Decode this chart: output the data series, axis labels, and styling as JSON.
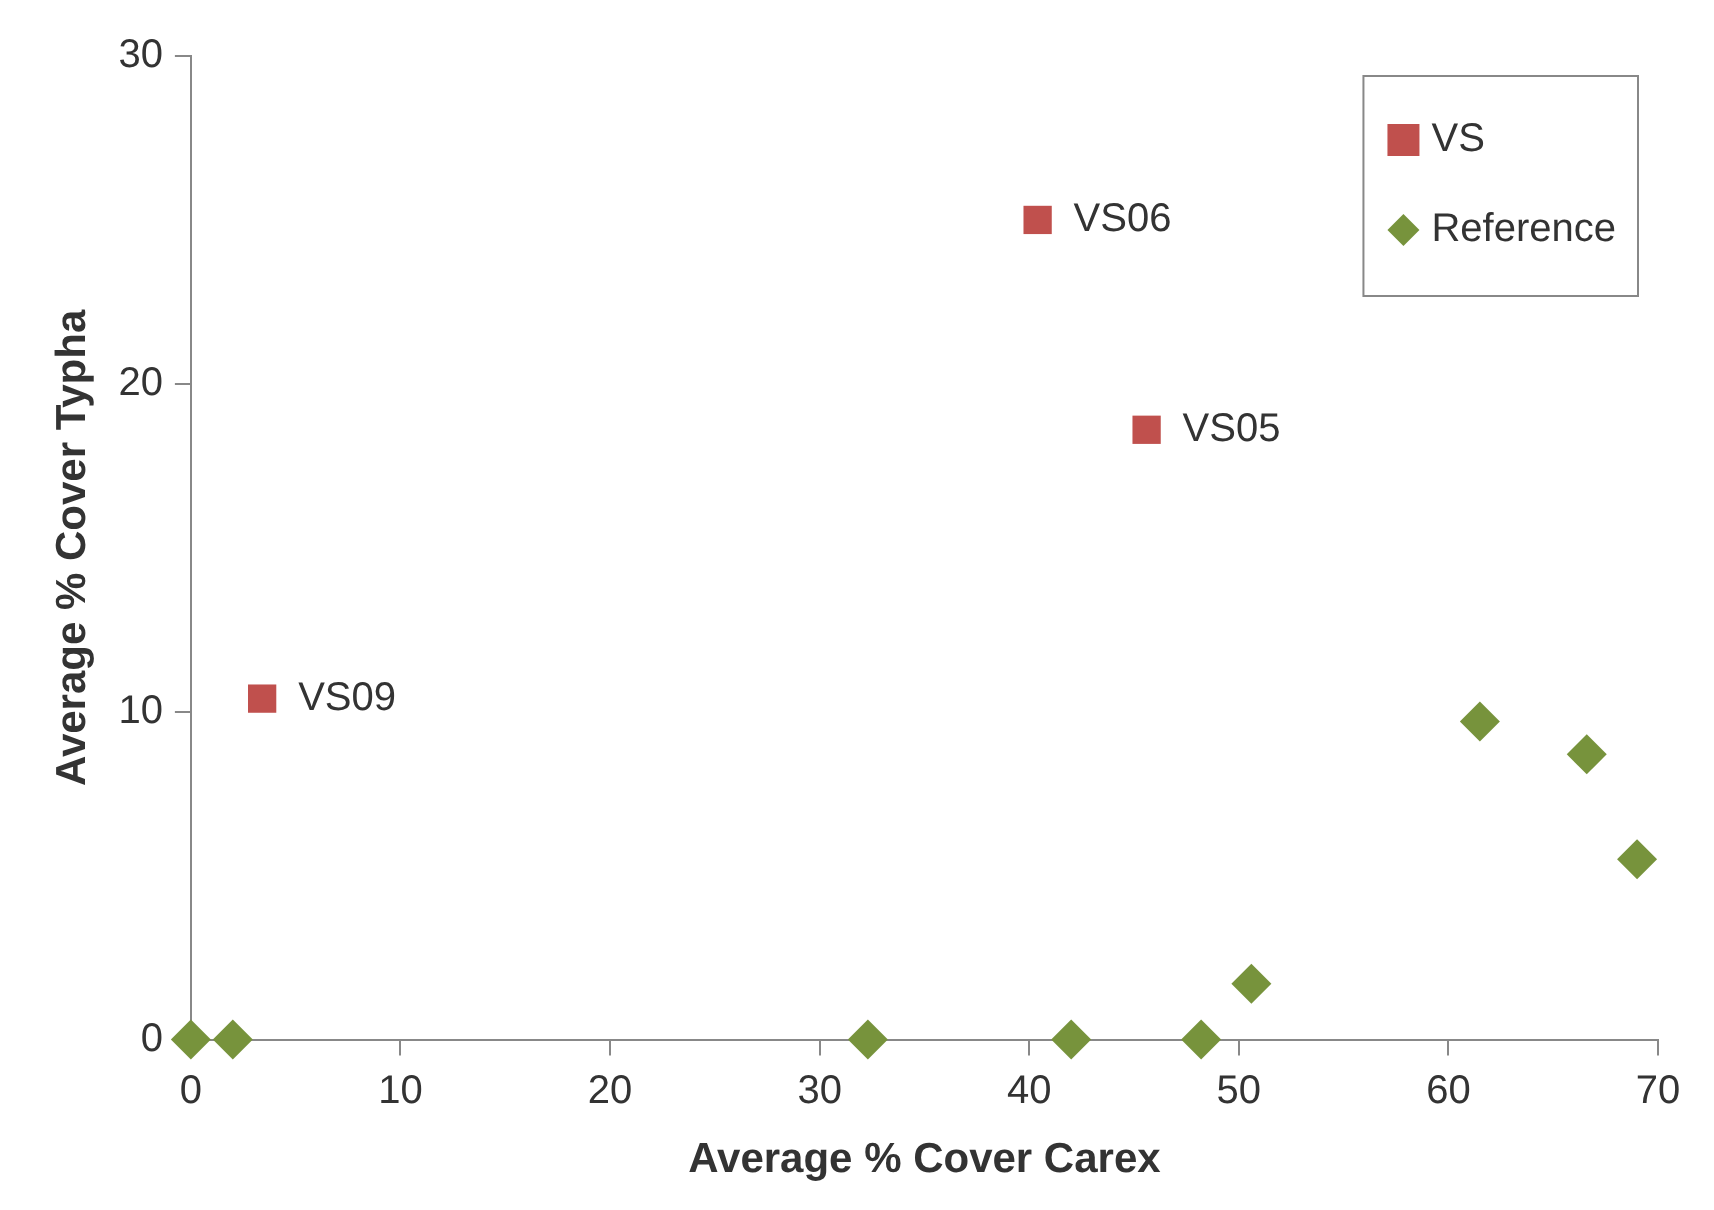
{
  "chart_data": {
    "type": "scatter",
    "xlabel": "Average % Cover Carex",
    "ylabel": "Average % Cover Typha",
    "xlim": [
      0,
      70
    ],
    "xticks": [
      0,
      10,
      20,
      30,
      40,
      50,
      60,
      70
    ],
    "ylim": [
      0,
      30
    ],
    "yticks": [
      0,
      10,
      20,
      30
    ],
    "grid": false,
    "legend": "top right",
    "series": [
      {
        "name": "VS",
        "color": "#c0504d",
        "marker": "square",
        "x": [
          3.4,
          40.4,
          45.6
        ],
        "values": [
          10.4,
          25.0,
          18.6
        ]
      },
      {
        "name": "Reference",
        "color": "#77933c",
        "marker": "diamond",
        "x": [
          0,
          2.0,
          32.3,
          42.0,
          48.2,
          50.6,
          61.5,
          66.6,
          69.0
        ],
        "values": [
          0,
          0,
          0,
          0,
          0,
          1.7,
          9.7,
          8.7,
          5.5
        ]
      }
    ],
    "annotations": [
      {
        "text": "VS09",
        "x": 3.4,
        "y": 10.4
      },
      {
        "text": "VS06",
        "x": 40.4,
        "y": 25.0
      },
      {
        "text": "VS05",
        "x": 45.6,
        "y": 18.6
      }
    ]
  }
}
